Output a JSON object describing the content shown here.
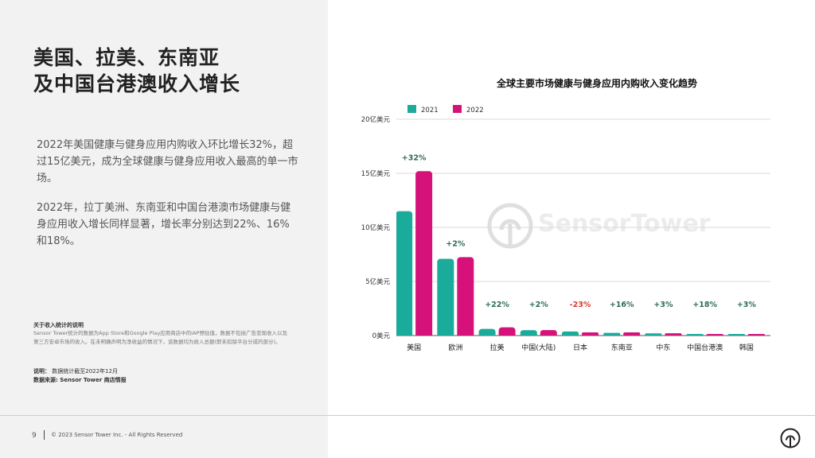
{
  "left": {
    "title_lines": [
      "美国、拉美、东南亚",
      "及中国台港澳收入增长"
    ],
    "paragraph1": "2022年美国健康与健身应用内购收入环比增长32%，超过15亿美元，成为全球健康与健身应用收入最高的单一市场。",
    "paragraph2": "2022年，拉丁美洲、东南亚和中国台港澳市场健康与健身应用收入增长同样显著，增长率分别达到22%、16%和18%。",
    "note_title": "关于收入统计的说明",
    "note_body": "Sensor Tower统计的数据为App Store和Google Play应用商店中的IAP预估值，数据不包括广告变现收入以及第三方安卓市场的收入。在未明确声明为净收益的情况下，该数据均为收入总额(即未扣除平台分成的部分)。",
    "meta1_label": "说明：",
    "meta1_text": "数据统计截至2022年12月",
    "meta2_label": "数据来源:",
    "meta2_text": "Sensor Tower 商店情报"
  },
  "footer": {
    "page_number": "9",
    "copyright": "© 2023 Sensor Tower Inc. - All Rights Reserved"
  },
  "watermark": "SensorTower",
  "colors": {
    "teal": "#1aab9b",
    "magenta": "#d6127a",
    "positive": "#2e6b5a",
    "negative": "#d93a2b"
  },
  "chart_data": {
    "type": "bar",
    "title": "全球主要市场健康与健身应用内购收入变化趋势",
    "categories": [
      "美国",
      "欧洲",
      "拉美",
      "中国(大陆)",
      "日本",
      "东南亚",
      "中东",
      "中国台港澳",
      "韩国"
    ],
    "series": [
      {
        "name": "2021",
        "color": "#1aab9b",
        "values": [
          11.5,
          7.1,
          0.62,
          0.5,
          0.38,
          0.25,
          0.2,
          0.1,
          0.06
        ]
      },
      {
        "name": "2022",
        "color": "#d6127a",
        "values": [
          15.2,
          7.25,
          0.76,
          0.51,
          0.29,
          0.29,
          0.21,
          0.12,
          0.06
        ]
      }
    ],
    "growth_labels": [
      "+32%",
      "+2%",
      "+22%",
      "+2%",
      "-23%",
      "+16%",
      "+3%",
      "+18%",
      "+3%"
    ],
    "y_ticks": [
      "0美元",
      "5亿美元",
      "10亿美元",
      "15亿美元",
      "20亿美元"
    ],
    "ylim": [
      0,
      20
    ],
    "legend": "top-left",
    "grid": true
  }
}
